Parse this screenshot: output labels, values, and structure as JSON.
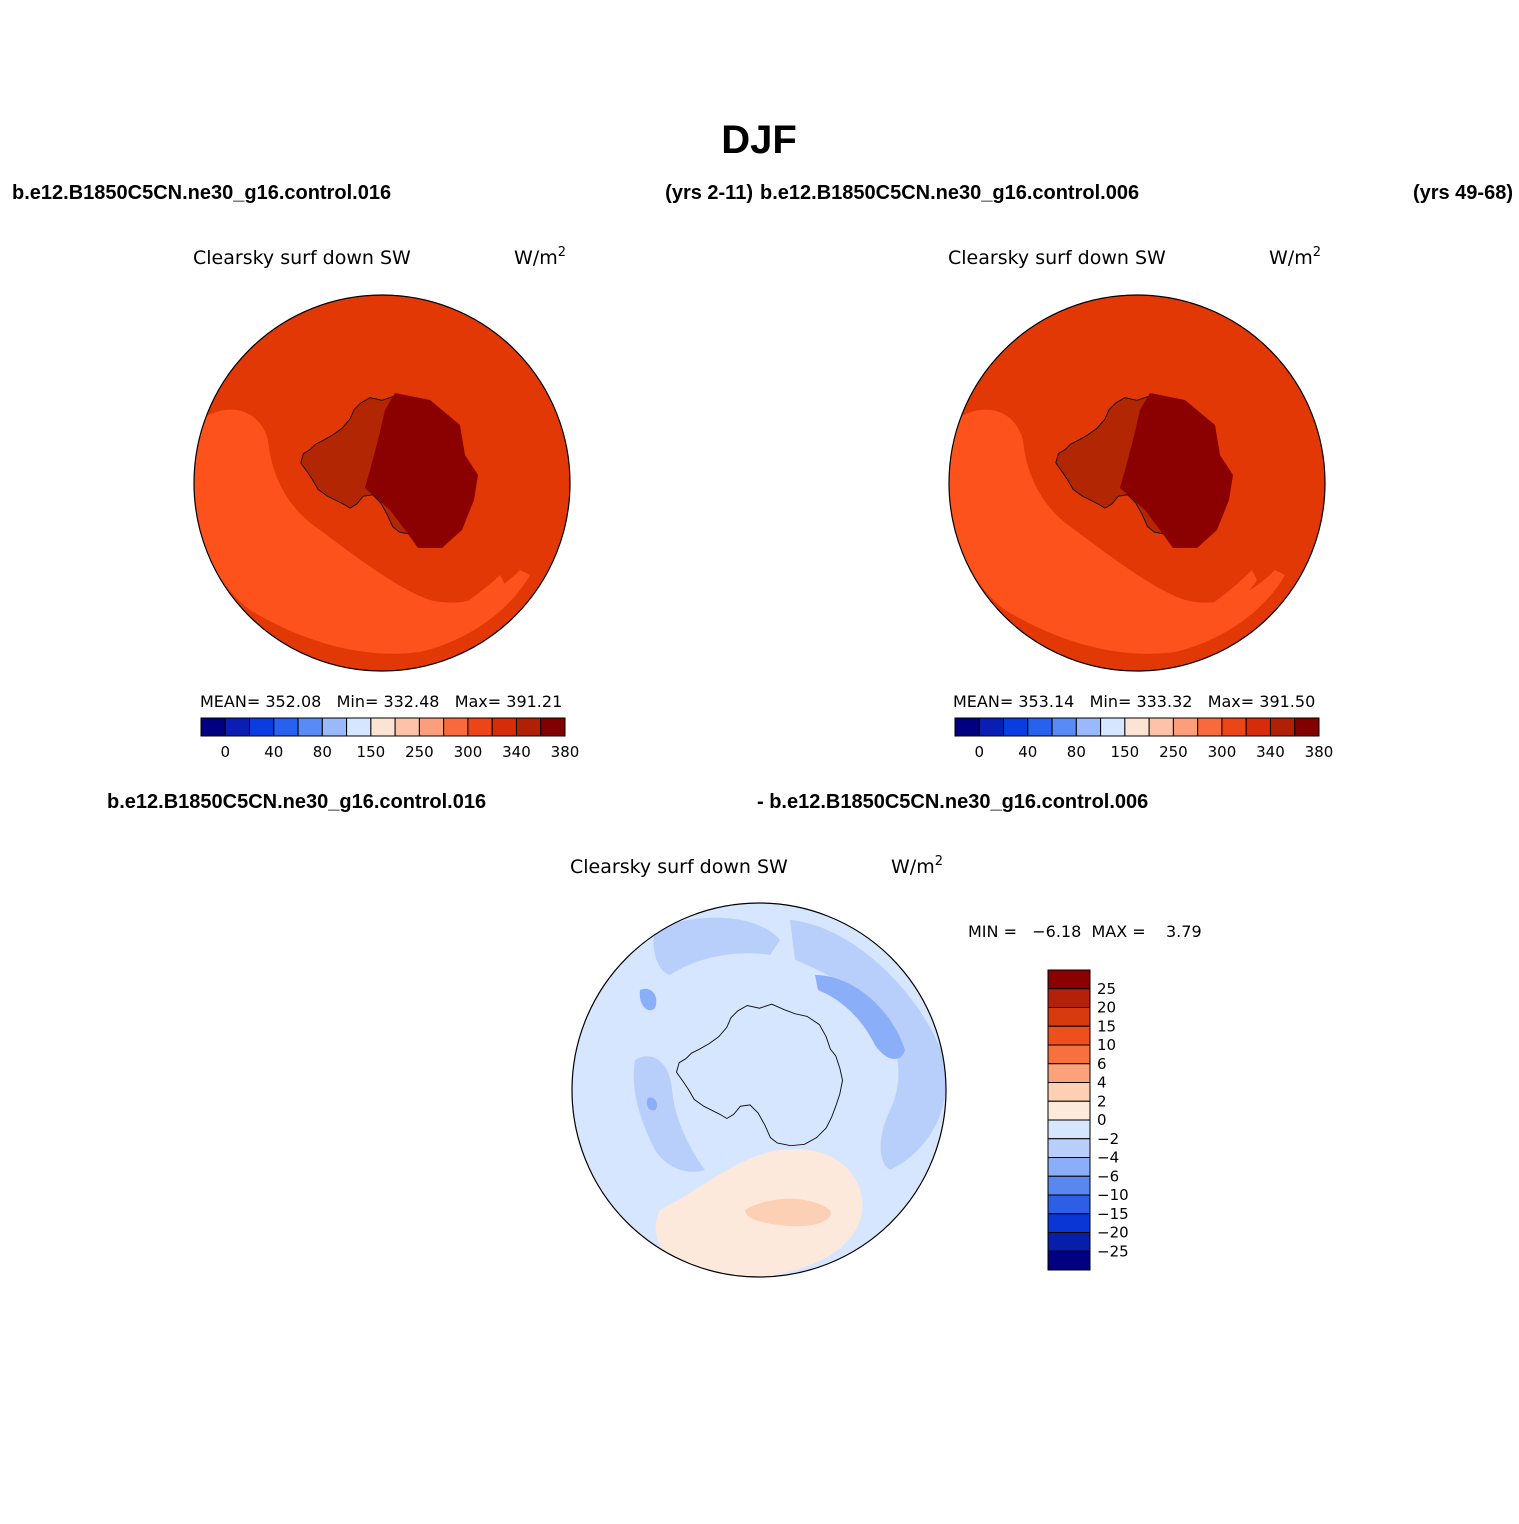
{
  "figure": {
    "title": "DJF",
    "case1": "b.e12.B1850C5CN.ne30_g16.control.016",
    "case1_years": "(yrs 2-11)",
    "case2": "b.e12.B1850C5CN.ne30_g16.control.006",
    "case2_years": "(yrs 49-68)",
    "diff_case1": "b.e12.B1850C5CN.ne30_g16.control.016",
    "diff_case2": "- b.e12.B1850C5CN.ne30_g16.control.006"
  },
  "panels": [
    {
      "variable": "Clearsky surf down SW",
      "units": "W/m",
      "units_exp": "2",
      "stats": "MEAN= 352.08   Min= 332.48   Max= 391.21"
    },
    {
      "variable": "Clearsky surf down SW",
      "units": "W/m",
      "units_exp": "2",
      "stats": "MEAN= 353.14   Min= 333.32   Max= 391.50"
    }
  ],
  "diff_panel": {
    "variable": "Clearsky surf down SW",
    "units": "W/m",
    "units_exp": "2",
    "stats": "MIN =   −6.18  MAX =    3.79"
  },
  "abs_colorbar": {
    "colors": [
      "#000080",
      "#0a1eb4",
      "#0a3ce1",
      "#2860f0",
      "#5a8af5",
      "#9ab9fa",
      "#d6e6ff",
      "#fde3d3",
      "#fdc3a8",
      "#fc9e7b",
      "#f86a3e",
      "#ee4518",
      "#d62c0a",
      "#b02005",
      "#820000"
    ],
    "labels": [
      "0",
      "40",
      "80",
      "150",
      "250",
      "300",
      "340",
      "380"
    ],
    "label_boundary_index": [
      1,
      3,
      5,
      7,
      9,
      11,
      13,
      15
    ]
  },
  "diff_colorbar": {
    "colors_top_to_bottom": [
      "#8b0000",
      "#b5200a",
      "#d83a0f",
      "#ef4f1d",
      "#f8703e",
      "#fba27d",
      "#fdd0b4",
      "#fde9dc",
      "#d6e6ff",
      "#b8cffb",
      "#8aaef7",
      "#5a86f0",
      "#2c5ee6",
      "#0a36d8",
      "#061eaa",
      "#000080"
    ],
    "labels": [
      "25",
      "20",
      "15",
      "10",
      "6",
      "4",
      "2",
      "0",
      "−2",
      "−4",
      "−6",
      "−10",
      "−15",
      "−20",
      "−25"
    ]
  },
  "map_colors": {
    "ocean_base": "#e23806",
    "ocean_lower": "#fd521c",
    "coast_band": "#b32603",
    "interior": "#8b0000",
    "diff_base": "#d6e6ff",
    "diff_blue": "#b8cffb",
    "diff_blue_dark": "#8aaef7",
    "diff_warm": "#fde9dc",
    "diff_warm2": "#fbd0b4"
  }
}
